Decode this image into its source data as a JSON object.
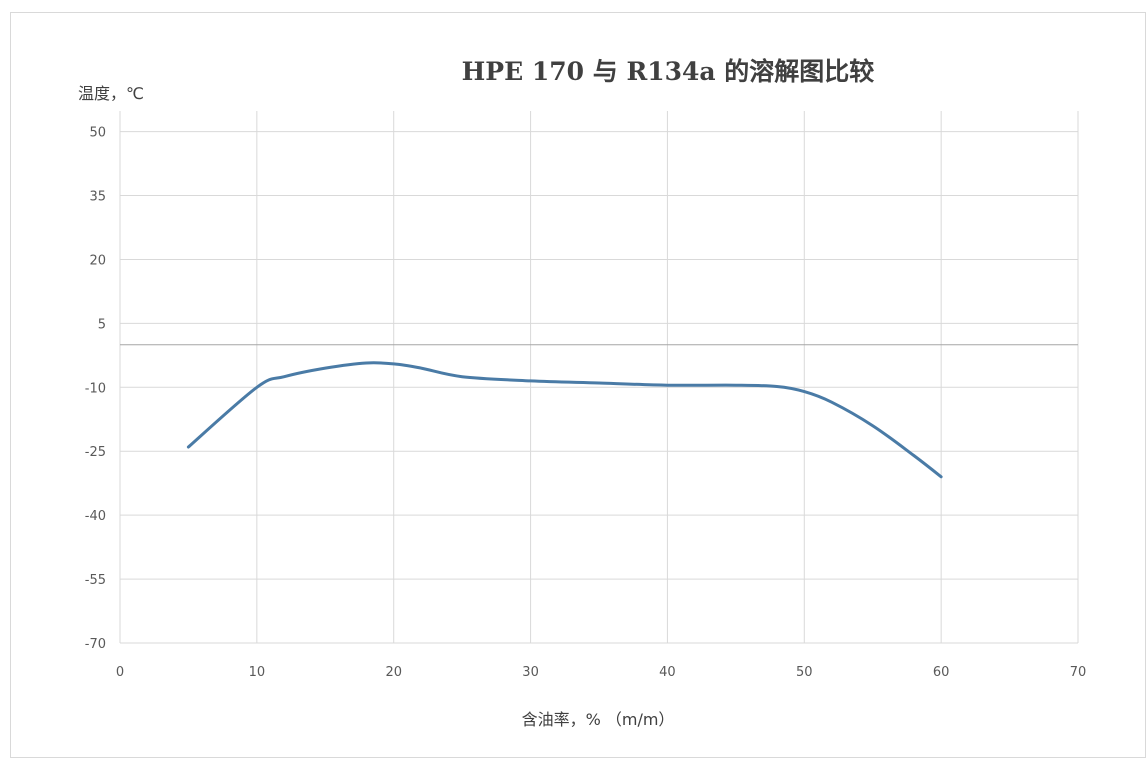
{
  "chart_data": {
    "type": "line",
    "title": "HPE 170 与 R134a 的溶解图比较",
    "xlabel": "含油率，% （m/m）",
    "ylabel": "温度，℃",
    "xlim": [
      0,
      70
    ],
    "ylim": [
      -70,
      60
    ],
    "x_ticks": [
      0,
      10,
      20,
      30,
      40,
      50,
      60,
      70
    ],
    "y_ticks": [
      50,
      35,
      20,
      5,
      -10,
      -25,
      -40,
      -55,
      -70
    ],
    "grid": true,
    "legend": "none",
    "series": [
      {
        "color": "#4a7ba6",
        "x": [
          5,
          10,
          12,
          15,
          18,
          20,
          22,
          25,
          30,
          35,
          40,
          45,
          48,
          50,
          52,
          55,
          58,
          60
        ],
        "y": [
          -24,
          -10,
          -7.5,
          -5.5,
          -4.3,
          -4.5,
          -5.5,
          -7.5,
          -8.5,
          -9,
          -9.5,
          -9.5,
          -9.8,
          -11,
          -13.5,
          -19,
          -26,
          -31
        ]
      }
    ]
  },
  "colors": {
    "grid": "#d9d9d9",
    "zero_line": "#a6a6a6",
    "text": "#404040",
    "ticks": "#595959"
  }
}
